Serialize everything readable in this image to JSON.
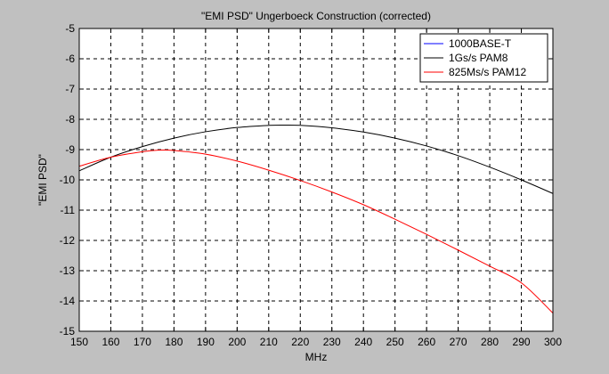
{
  "chart_data": {
    "type": "line",
    "title": "\"EMI PSD\" Ungerboeck Construction (corrected)",
    "xlabel": "MHz",
    "ylabel": "\"EMI PSD\"",
    "xlim": [
      150,
      300
    ],
    "ylim": [
      -15,
      -5
    ],
    "xticks": [
      150,
      160,
      170,
      180,
      190,
      200,
      210,
      220,
      230,
      240,
      250,
      260,
      270,
      280,
      290,
      300
    ],
    "yticks": [
      -5,
      -6,
      -7,
      -8,
      -9,
      -10,
      -11,
      -12,
      -13,
      -14,
      -15
    ],
    "grid": true,
    "grid_style": "dashed",
    "legend_position": "top-right",
    "background": "#c0c0c0",
    "plot_background": "#ffffff",
    "series": [
      {
        "name": "1000BASE-T",
        "color": "#0000ff",
        "x": [],
        "y": []
      },
      {
        "name": "1Gs/s PAM8",
        "color": "#000000",
        "x": [
          150,
          160,
          170,
          180,
          190,
          200,
          210,
          215,
          220,
          230,
          240,
          250,
          260,
          270,
          280,
          290,
          300
        ],
        "y": [
          -9.7,
          -9.25,
          -8.9,
          -8.62,
          -8.41,
          -8.27,
          -8.2,
          -8.19,
          -8.2,
          -8.28,
          -8.42,
          -8.62,
          -8.88,
          -9.2,
          -9.58,
          -10.0,
          -10.45
        ]
      },
      {
        "name": "825Ms/s PAM12",
        "color": "#ff0000",
        "x": [
          150,
          160,
          170,
          175,
          180,
          190,
          200,
          210,
          220,
          230,
          240,
          250,
          260,
          270,
          280,
          290,
          300
        ],
        "y": [
          -9.55,
          -9.25,
          -9.07,
          -9.02,
          -9.03,
          -9.15,
          -9.38,
          -9.68,
          -10.02,
          -10.4,
          -10.82,
          -11.3,
          -11.8,
          -12.32,
          -12.85,
          -13.4,
          -14.4
        ]
      }
    ]
  }
}
